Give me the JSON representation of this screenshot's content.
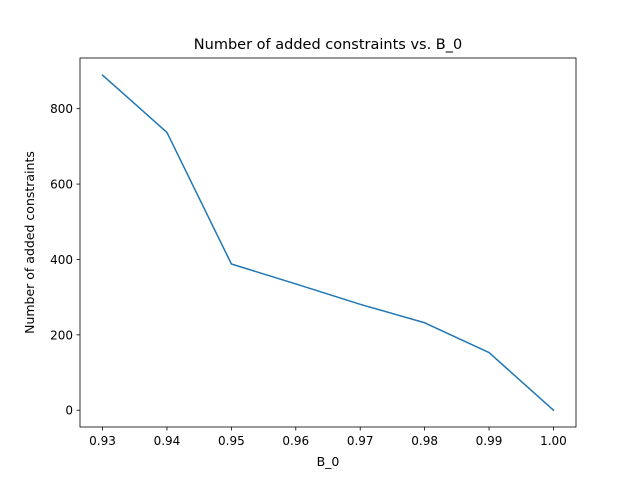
{
  "chart_data": {
    "type": "line",
    "title": "Number of added constraints vs. B_0",
    "xlabel": "B_0",
    "ylabel": "Number of added constraints",
    "xlim": [
      0.9265,
      1.0035
    ],
    "ylim": [
      -44.5,
      934.5
    ],
    "xticks": [
      0.93,
      0.94,
      0.95,
      0.96,
      0.97,
      0.98,
      0.99,
      1.0
    ],
    "xtick_labels": [
      "0.93",
      "0.94",
      "0.95",
      "0.96",
      "0.97",
      "0.98",
      "0.99",
      "1.00"
    ],
    "yticks": [
      0,
      200,
      400,
      600,
      800
    ],
    "ytick_labels": [
      "0",
      "200",
      "400",
      "600",
      "800"
    ],
    "grid": false,
    "series": [
      {
        "color": "#1f77b4",
        "x": [
          0.93,
          0.94,
          0.95,
          0.96,
          0.97,
          0.98,
          0.99,
          1.0
        ],
        "y": [
          889,
          737,
          388,
          335,
          281,
          232,
          153,
          0
        ]
      }
    ]
  }
}
